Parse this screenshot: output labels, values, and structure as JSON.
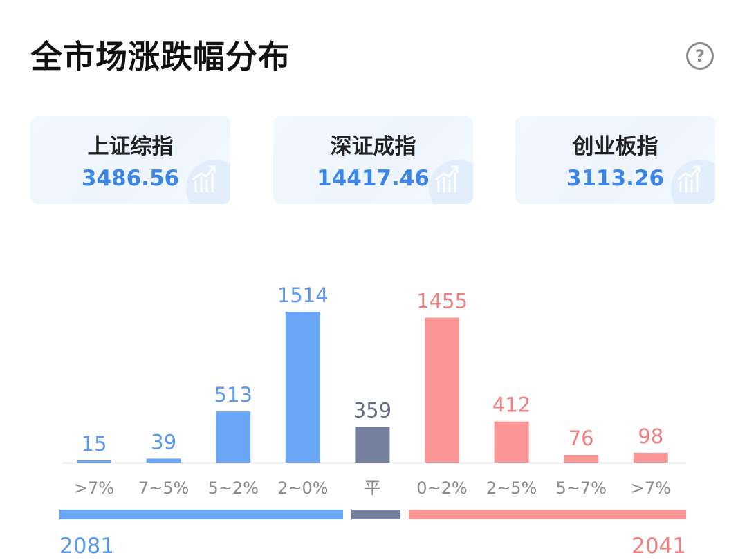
{
  "header": {
    "title": "全市场涨跌幅分布",
    "help_icon": "question-circle-icon",
    "help_glyph": "?"
  },
  "indices": [
    {
      "name": "上证综指",
      "value": "3486.56",
      "icon": "trend-chart-icon"
    },
    {
      "name": "深证成指",
      "value": "14417.46",
      "icon": "trend-chart-icon"
    },
    {
      "name": "创业板指",
      "value": "3113.26",
      "icon": "trend-chart-icon"
    }
  ],
  "chart_data": {
    "type": "bar",
    "categories": [
      ">7%",
      "7~5%",
      "5~2%",
      "2~0%",
      "平",
      "0~2%",
      "2~5%",
      "5~7%",
      ">7%"
    ],
    "values": [
      15,
      39,
      513,
      1514,
      359,
      1455,
      412,
      76,
      98
    ],
    "groups": [
      "down",
      "down",
      "down",
      "down",
      "flat",
      "up",
      "up",
      "up",
      "up"
    ],
    "ylim": [
      0,
      1600
    ],
    "colors": {
      "down": "#6ba7f7",
      "flat": "#75809f",
      "up": "#fb9696",
      "down_label": "#5a9af0",
      "flat_label": "#666e86",
      "up_label": "#f27f7f"
    },
    "totals": {
      "down": "2081",
      "up": "2041"
    }
  }
}
